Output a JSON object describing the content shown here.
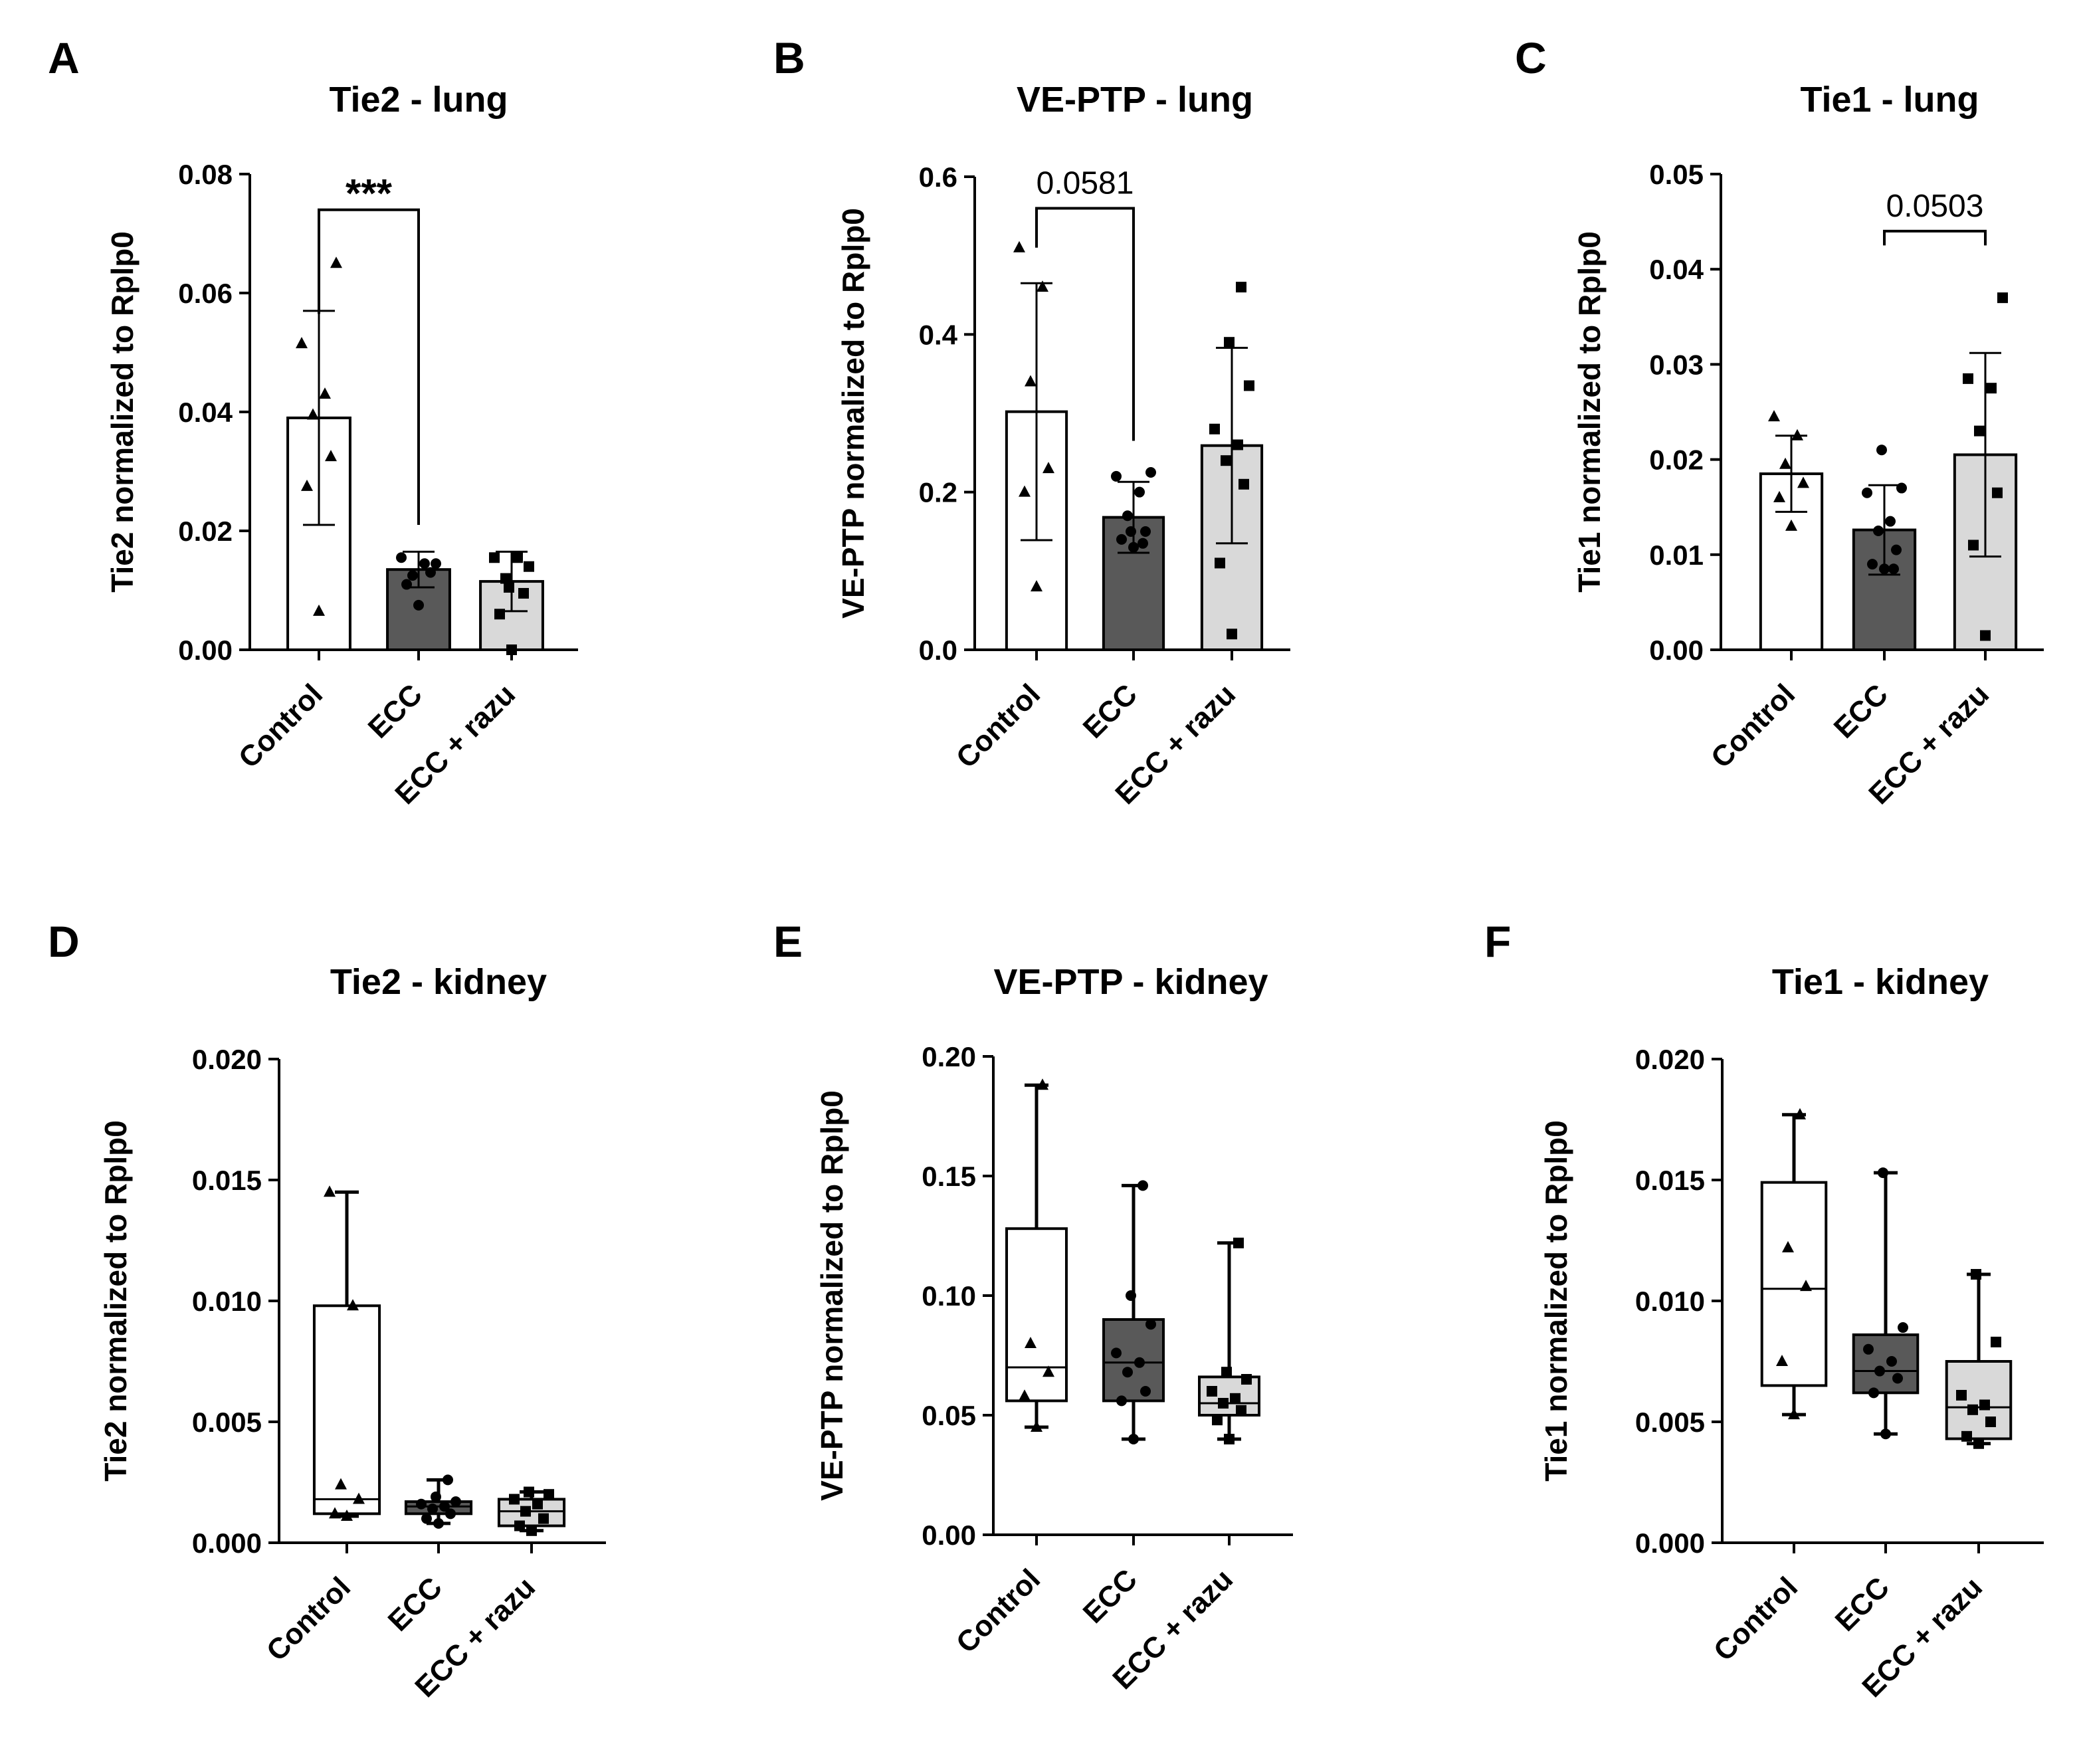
{
  "colors": {
    "control": "#ffffff",
    "ecc": "#595959",
    "ecc_razu": "#d9d9d9",
    "ink": "#000000"
  },
  "chart_data": [
    {
      "panel": "A",
      "type": "bar",
      "title": "Tie2 - lung",
      "xlabel": "",
      "ylabel": "Tie2 normalized to Rplp0",
      "ylim": [
        0,
        0.08
      ],
      "yticks": [
        0.0,
        0.02,
        0.04,
        0.06,
        0.08
      ],
      "ytick_labels": [
        "0.00",
        "0.02",
        "0.04",
        "0.06",
        "0.08"
      ],
      "categories": [
        "Control",
        "ECC",
        "ECC + razu"
      ],
      "series": [
        {
          "name": "Control",
          "marker": "triangle",
          "mean": 0.039,
          "sd": 0.018,
          "points": [
            0.0065,
            0.0275,
            0.0325,
            0.0395,
            0.043,
            0.0515,
            0.065
          ]
        },
        {
          "name": "ECC",
          "marker": "circle",
          "mean": 0.0135,
          "sd": 0.003,
          "points": [
            0.0075,
            0.011,
            0.013,
            0.0125,
            0.0145,
            0.0155,
            0.0145
          ]
        },
        {
          "name": "ECC + razu",
          "marker": "square",
          "mean": 0.0115,
          "sd": 0.005,
          "points": [
            0.0,
            0.006,
            0.0095,
            0.012,
            0.0155,
            0.0155,
            0.014,
            0.0105
          ]
        }
      ],
      "annotations": [
        {
          "from": 0,
          "to": 1,
          "text": "***",
          "y": 0.074
        }
      ]
    },
    {
      "panel": "B",
      "type": "bar",
      "title": "VE-PTP - lung",
      "xlabel": "",
      "ylabel": "VE-PTP normalized to Rplp0",
      "ylim": [
        0,
        0.6
      ],
      "yticks": [
        0.0,
        0.2,
        0.4,
        0.6
      ],
      "ytick_labels": [
        "0.0",
        "0.2",
        "0.4",
        "0.6"
      ],
      "categories": [
        "Control",
        "ECC",
        "ECC + razu"
      ],
      "series": [
        {
          "name": "Control",
          "marker": "triangle",
          "mean": 0.302,
          "sd": 0.163,
          "points": [
            0.08,
            0.2,
            0.23,
            0.34,
            0.46,
            0.51
          ]
        },
        {
          "name": "ECC",
          "marker": "circle",
          "mean": 0.168,
          "sd": 0.045,
          "points": [
            0.13,
            0.14,
            0.15,
            0.17,
            0.2,
            0.22,
            0.225,
            0.15,
            0.135
          ]
        },
        {
          "name": "ECC + razu",
          "marker": "square",
          "mean": 0.259,
          "sd": 0.124,
          "points": [
            0.02,
            0.11,
            0.21,
            0.24,
            0.26,
            0.28,
            0.335,
            0.39,
            0.46
          ]
        }
      ],
      "annotations": [
        {
          "from": 0,
          "to": 1,
          "text": "0.0581",
          "y": 0.56
        }
      ]
    },
    {
      "panel": "C",
      "type": "bar",
      "title": "Tie1 - lung",
      "xlabel": "",
      "ylabel": "Tie1 normalized to Rplp0",
      "ylim": [
        0,
        0.05
      ],
      "yticks": [
        0.0,
        0.01,
        0.02,
        0.03,
        0.04,
        0.05
      ],
      "ytick_labels": [
        "0.00",
        "0.01",
        "0.02",
        "0.03",
        "0.04",
        "0.05"
      ],
      "categories": [
        "Control",
        "ECC",
        "ECC + razu"
      ],
      "series": [
        {
          "name": "Control",
          "marker": "triangle",
          "mean": 0.0185,
          "sd": 0.004,
          "points": [
            0.013,
            0.016,
            0.0175,
            0.0195,
            0.0225,
            0.0245
          ]
        },
        {
          "name": "ECC",
          "marker": "circle",
          "mean": 0.0126,
          "sd": 0.0047,
          "points": [
            0.0085,
            0.009,
            0.0105,
            0.0125,
            0.0135,
            0.0165,
            0.017,
            0.021,
            0.0085
          ]
        },
        {
          "name": "ECC + razu",
          "marker": "square",
          "mean": 0.0205,
          "sd": 0.0107,
          "points": [
            0.0015,
            0.011,
            0.0165,
            0.023,
            0.0275,
            0.0285,
            0.037
          ]
        }
      ],
      "annotations": [
        {
          "from": 1,
          "to": 2,
          "text": "0.0503",
          "y": 0.044
        }
      ]
    },
    {
      "panel": "D",
      "type": "box",
      "title": "Tie2 - kidney",
      "xlabel": "",
      "ylabel": "Tie2 normalized to Rplp0",
      "ylim": [
        0,
        0.02
      ],
      "yticks": [
        0.0,
        0.005,
        0.01,
        0.015,
        0.02
      ],
      "ytick_labels": [
        "0.000",
        "0.005",
        "0.010",
        "0.015",
        "0.020"
      ],
      "categories": [
        "Control",
        "ECC",
        "ECC + razu"
      ],
      "series": [
        {
          "name": "Control",
          "marker": "triangle",
          "min": 0.0011,
          "q1": 0.0012,
          "median": 0.0018,
          "q3": 0.0098,
          "max": 0.0145,
          "points": [
            0.0011,
            0.0012,
            0.0018,
            0.0024,
            0.0098,
            0.0145
          ]
        },
        {
          "name": "ECC",
          "marker": "circle",
          "min": 0.0008,
          "q1": 0.0012,
          "median": 0.0015,
          "q3": 0.0017,
          "max": 0.0026,
          "points": [
            0.0008,
            0.001,
            0.0012,
            0.0014,
            0.0015,
            0.0016,
            0.0017,
            0.0019,
            0.0026
          ]
        },
        {
          "name": "ECC + razu",
          "marker": "square",
          "min": 0.0005,
          "q1": 0.0007,
          "median": 0.0013,
          "q3": 0.0018,
          "max": 0.0021,
          "points": [
            0.0005,
            0.0007,
            0.001,
            0.0013,
            0.0016,
            0.0018,
            0.002,
            0.0021
          ]
        }
      ]
    },
    {
      "panel": "E",
      "type": "box",
      "title": "VE-PTP - kidney",
      "xlabel": "",
      "ylabel": "VE-PTP normalized to Rplp0",
      "ylim": [
        0,
        0.2
      ],
      "yticks": [
        0.0,
        0.05,
        0.1,
        0.15,
        0.2
      ],
      "ytick_labels": [
        "0.00",
        "0.05",
        "0.10",
        "0.15",
        "0.20"
      ],
      "categories": [
        "Control",
        "ECC",
        "ECC + razu"
      ],
      "series": [
        {
          "name": "Control",
          "marker": "triangle",
          "min": 0.045,
          "q1": 0.056,
          "median": 0.07,
          "q3": 0.128,
          "max": 0.188,
          "points": [
            0.045,
            0.058,
            0.068,
            0.08,
            0.188
          ]
        },
        {
          "name": "ECC",
          "marker": "circle",
          "min": 0.04,
          "q1": 0.056,
          "median": 0.072,
          "q3": 0.09,
          "max": 0.146,
          "points": [
            0.04,
            0.056,
            0.06,
            0.068,
            0.072,
            0.076,
            0.088,
            0.1,
            0.146
          ]
        },
        {
          "name": "ECC + razu",
          "marker": "square",
          "min": 0.04,
          "q1": 0.05,
          "median": 0.055,
          "q3": 0.066,
          "max": 0.122,
          "points": [
            0.04,
            0.048,
            0.052,
            0.055,
            0.057,
            0.06,
            0.065,
            0.068,
            0.122
          ]
        }
      ]
    },
    {
      "panel": "F",
      "type": "box",
      "title": "Tie1 - kidney",
      "xlabel": "",
      "ylabel": "Tie1 normalized to Rplp0",
      "ylim": [
        0,
        0.02
      ],
      "yticks": [
        0.0,
        0.005,
        0.01,
        0.015,
        0.02
      ],
      "ytick_labels": [
        "0.000",
        "0.005",
        "0.010",
        "0.015",
        "0.020"
      ],
      "categories": [
        "Control",
        "ECC",
        "ECC + razu"
      ],
      "series": [
        {
          "name": "Control",
          "marker": "triangle",
          "min": 0.0053,
          "q1": 0.0065,
          "median": 0.0105,
          "q3": 0.0149,
          "max": 0.0177,
          "points": [
            0.0053,
            0.0075,
            0.0106,
            0.0122,
            0.0177
          ]
        },
        {
          "name": "ECC",
          "marker": "circle",
          "min": 0.0045,
          "q1": 0.0062,
          "median": 0.0071,
          "q3": 0.0086,
          "max": 0.0153,
          "points": [
            0.0045,
            0.0062,
            0.0068,
            0.0071,
            0.0075,
            0.008,
            0.0089,
            0.0153
          ]
        },
        {
          "name": "ECC + razu",
          "marker": "square",
          "min": 0.0041,
          "q1": 0.0043,
          "median": 0.0056,
          "q3": 0.0075,
          "max": 0.0111,
          "points": [
            0.0041,
            0.0044,
            0.005,
            0.0055,
            0.0057,
            0.0061,
            0.0083,
            0.0111
          ]
        }
      ]
    }
  ]
}
